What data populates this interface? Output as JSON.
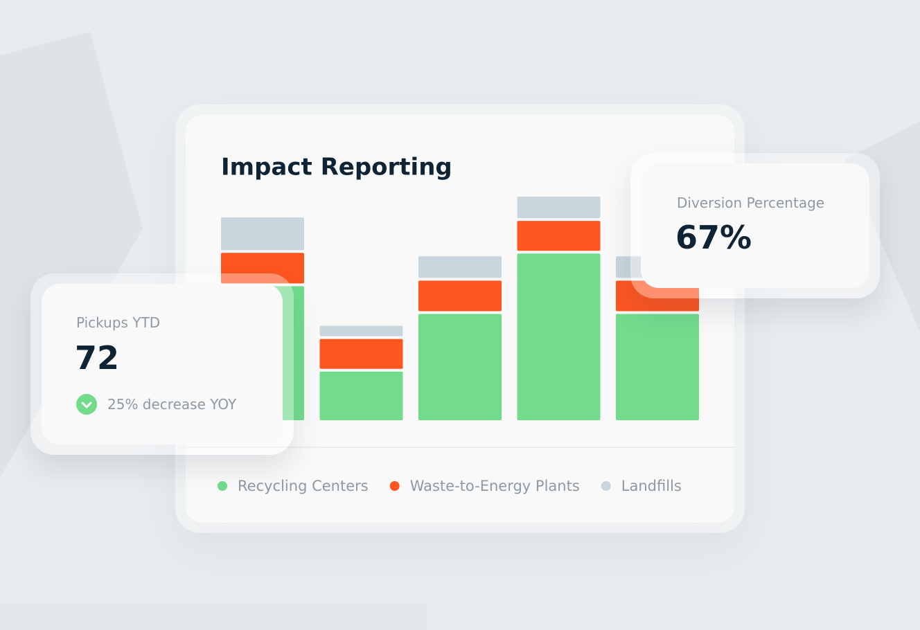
{
  "chart_data": {
    "type": "bar",
    "stacked": true,
    "title": "Impact Reporting",
    "series": [
      {
        "name": "Recycling Centers",
        "color": "#72dc8c",
        "values": [
          193,
          70,
          153,
          240,
          153
        ]
      },
      {
        "name": "Waste-to-Energy Plants",
        "color": "#fe5621",
        "values": [
          44,
          43,
          44,
          43,
          44
        ]
      },
      {
        "name": "Landfills",
        "color": "#c9d6dd",
        "values": [
          47,
          15,
          31,
          31,
          31
        ]
      }
    ]
  },
  "pickups_card": {
    "label": "Pickups YTD",
    "value": "72",
    "change": "25% decrease YOY"
  },
  "diversion_card": {
    "label": "Diversion Percentage",
    "value": "67%"
  }
}
